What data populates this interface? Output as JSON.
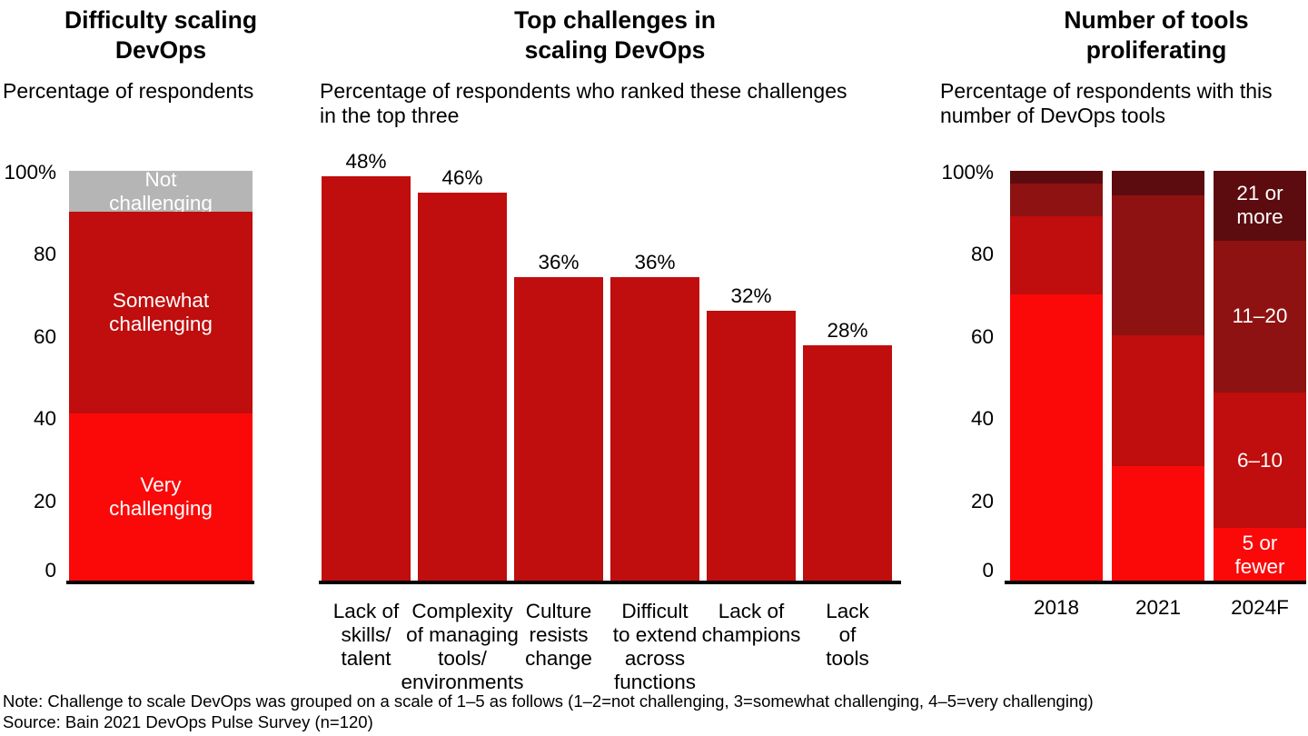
{
  "figure": {
    "note": "Note: Challenge to scale DevOps was grouped on a scale of 1–5 as follows (1–2=not challenging, 3=somewhat challenging, 4–5=very challenging)",
    "source": "Source: Bain 2021 DevOps Pulse Survey (n=120)"
  },
  "colors": {
    "bright_red": "#fb0909",
    "mid_red": "#c00d0d",
    "dark_red": "#8e1211",
    "maroon": "#5c0b0e",
    "gray": "#b5b5b5",
    "axis_black": "#000000",
    "label_white": "#ffffff"
  },
  "chart_data": [
    {
      "type": "bar",
      "subtype": "stacked-100pct-single-bar",
      "title": "Difficulty scaling\nDevOps",
      "subtitle": "Percentage of respondents",
      "categories": [
        ""
      ],
      "series": [
        {
          "name": "Very challenging",
          "label": "Very\nchallenging",
          "values": [
            41
          ],
          "color": "#fb0909"
        },
        {
          "name": "Somewhat challenging",
          "label": "Somewhat\nchallenging",
          "values": [
            49
          ],
          "color": "#c00d0d"
        },
        {
          "name": "Not challenging",
          "label": "Not\nchallenging",
          "values": [
            10
          ],
          "color": "#b5b5b5"
        }
      ],
      "ylim": [
        0,
        100
      ],
      "yticks": [
        "100%",
        "80",
        "60",
        "40",
        "20",
        "0"
      ],
      "ytick_values": [
        100,
        80,
        60,
        40,
        20,
        0
      ],
      "grid": "off",
      "legend": "labels-inside-bar"
    },
    {
      "type": "bar",
      "subtype": "vertical-bars-value-labels",
      "title": "Top challenges in\nscaling DevOps",
      "subtitle": "Percentage of respondents who ranked these challenges\nin the top three",
      "categories": [
        "Lack of\nskills/\ntalent",
        "Complexity\nof managing\ntools/\nenvironments",
        "Culture\nresists\nchange",
        "Difficult\nto extend\nacross\nfunctions",
        "Lack of\nchampions",
        "Lack\nof tools"
      ],
      "values": [
        48,
        46,
        36,
        36,
        32,
        28
      ],
      "value_labels": [
        "48%",
        "46%",
        "36%",
        "36%",
        "32%",
        "28%"
      ],
      "bar_color": "#c00d0d",
      "ylim": [
        0,
        50
      ],
      "grid": "off",
      "legend": "none"
    },
    {
      "type": "bar",
      "subtype": "stacked-100pct",
      "title": "Number of tools\nproliferating",
      "subtitle": "Percentage of respondents with this\nnumber of DevOps tools",
      "categories": [
        "2018",
        "2021",
        "2024F"
      ],
      "series": [
        {
          "name": "5 or fewer",
          "label": "5 or\nfewer",
          "values": [
            70,
            28,
            13
          ],
          "color": "#fb0909"
        },
        {
          "name": "6–10",
          "label": "6–10",
          "values": [
            19,
            32,
            33
          ],
          "color": "#c00d0d"
        },
        {
          "name": "11–20",
          "label": "11–20",
          "values": [
            8,
            34,
            37
          ],
          "color": "#8e1211"
        },
        {
          "name": "21 or more",
          "label": "21 or\nmore",
          "values": [
            3,
            6,
            17
          ],
          "color": "#5c0b0e"
        }
      ],
      "segment_labels_on_category": "2024F",
      "ylim": [
        0,
        100
      ],
      "yticks": [
        "100%",
        "80",
        "60",
        "40",
        "20",
        "0"
      ],
      "ytick_values": [
        100,
        80,
        60,
        40,
        20,
        0
      ],
      "grid": "off",
      "legend": "labels-inside-last-bar"
    }
  ]
}
